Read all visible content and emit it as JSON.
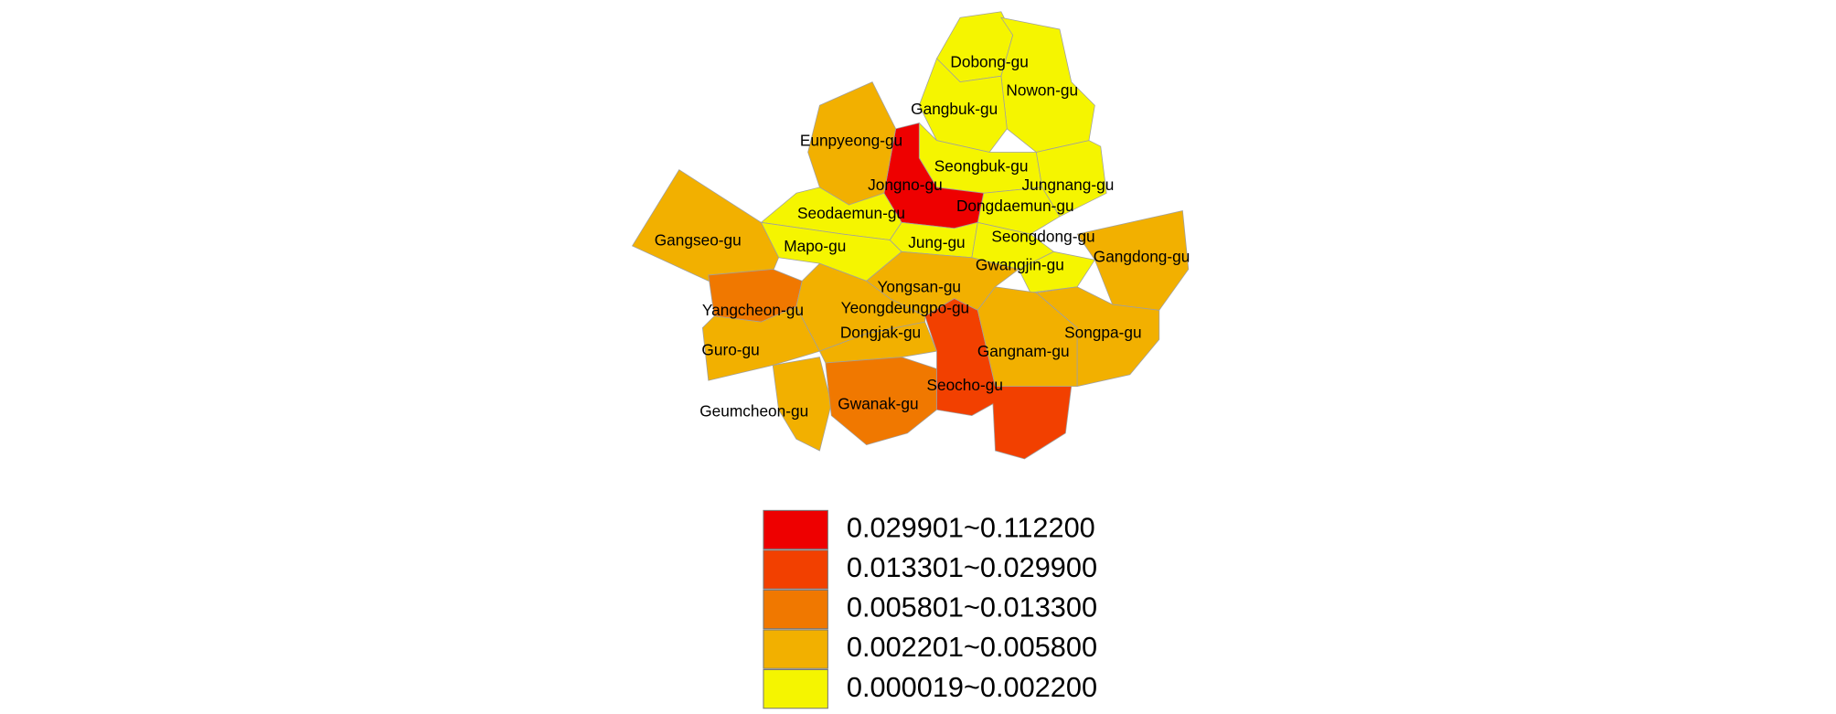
{
  "map": {
    "districts": [
      {
        "name": "Dobong-gu",
        "color": "#f5f500"
      },
      {
        "name": "Nowon-gu",
        "color": "#f5f500"
      },
      {
        "name": "Gangbuk-gu",
        "color": "#f5f500"
      },
      {
        "name": "Seongbuk-gu",
        "color": "#f5f500"
      },
      {
        "name": "Jungnang-gu",
        "color": "#f5f500"
      },
      {
        "name": "Dongdaemun-gu",
        "color": "#f5f500"
      },
      {
        "name": "Jongno-gu",
        "color": "#ee0000"
      },
      {
        "name": "Eunpyeong-gu",
        "color": "#f2b000"
      },
      {
        "name": "Seodaemun-gu",
        "color": "#f5f500"
      },
      {
        "name": "Mapo-gu",
        "color": "#f5f500"
      },
      {
        "name": "Jung-gu",
        "color": "#f5f500"
      },
      {
        "name": "Seongdong-gu",
        "color": "#f5f500"
      },
      {
        "name": "Gwangjin-gu",
        "color": "#f5f500"
      },
      {
        "name": "Gangdong-gu",
        "color": "#f2b000"
      },
      {
        "name": "Yongsan-gu",
        "color": "#f2b000"
      },
      {
        "name": "Gangseo-gu",
        "color": "#f2b000"
      },
      {
        "name": "Yangcheon-gu",
        "color": "#f07800"
      },
      {
        "name": "Yeongdeungpo-gu",
        "color": "#f2b000"
      },
      {
        "name": "Guro-gu",
        "color": "#f2b000"
      },
      {
        "name": "Geumcheon-gu",
        "color": "#f2b000"
      },
      {
        "name": "Dongjak-gu",
        "color": "#f2b000"
      },
      {
        "name": "Gwanak-gu",
        "color": "#f07800"
      },
      {
        "name": "Seocho-gu",
        "color": "#f24000"
      },
      {
        "name": "Gangnam-gu",
        "color": "#f2b000"
      },
      {
        "name": "Songpa-gu",
        "color": "#f2b000"
      }
    ],
    "legend": [
      {
        "label": "0.029901~0.112200",
        "color": "#ee0000"
      },
      {
        "label": "0.013301~0.029900",
        "color": "#f24000"
      },
      {
        "label": "0.005801~0.013300",
        "color": "#f07800"
      },
      {
        "label": "0.002201~0.005800",
        "color": "#f2b000"
      },
      {
        "label": "0.000019~0.002200",
        "color": "#f5f500"
      }
    ]
  }
}
